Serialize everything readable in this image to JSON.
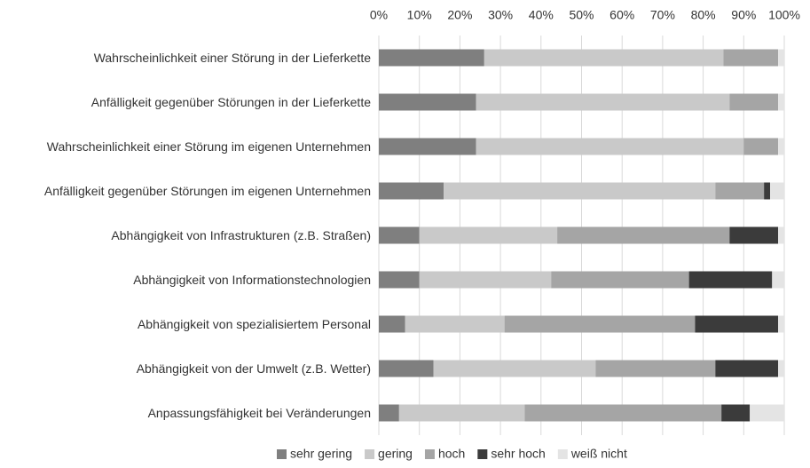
{
  "chart_data": {
    "type": "stacked_barh",
    "categories": [
      "Wahrscheinlichkeit einer Störung in der Lieferkette",
      "Anfälligkeit gegenüber Störungen in der Lieferkette",
      "Wahrscheinlichkeit einer Störung im eigenen Unternehmen",
      "Anfälligkeit gegenüber Störungen im eigenen Unternehmen",
      "Abhängigkeit von Infrastrukturen (z.B. Straßen)",
      "Abhängigkeit von Informationstechnologien",
      "Abhängigkeit von spezialisiertem Personal",
      "Abhängigkeit von der Umwelt (z.B. Wetter)",
      "Anpassungsfähigkeit bei Veränderungen"
    ],
    "series": [
      {
        "name": "sehr gering",
        "color": "#7f7f7f",
        "values": [
          26,
          24,
          24,
          16,
          10,
          10,
          6.5,
          13.5,
          5
        ]
      },
      {
        "name": "gering",
        "color": "#c9c9c9",
        "values": [
          59,
          62.5,
          66,
          67,
          34,
          32.5,
          24.5,
          40,
          31
        ]
      },
      {
        "name": "hoch",
        "color": "#a5a5a5",
        "values": [
          13.5,
          12,
          8.5,
          12,
          42.5,
          34,
          47,
          29.5,
          48.5
        ]
      },
      {
        "name": "sehr hoch",
        "color": "#3b3b3b",
        "values": [
          0,
          0,
          0,
          1.5,
          12,
          20.5,
          20.5,
          15.5,
          7
        ]
      },
      {
        "name": "weiß nicht",
        "color": "#e4e4e4",
        "values": [
          1.5,
          1.5,
          1.5,
          3.5,
          1.5,
          3,
          1.5,
          1.5,
          8.5
        ]
      }
    ],
    "xlim": [
      0,
      100
    ],
    "xticks": [
      {
        "value": 0,
        "label": "0%"
      },
      {
        "value": 10,
        "label": "10%"
      },
      {
        "value": 20,
        "label": "20%"
      },
      {
        "value": 30,
        "label": "30%"
      },
      {
        "value": 40,
        "label": "40%"
      },
      {
        "value": 50,
        "label": "50%"
      },
      {
        "value": 60,
        "label": "60%"
      },
      {
        "value": 70,
        "label": "70%"
      },
      {
        "value": 80,
        "label": "80%"
      },
      {
        "value": 90,
        "label": "90%"
      },
      {
        "value": 100,
        "label": "100%"
      }
    ],
    "grid": true,
    "legend": "bottom"
  }
}
